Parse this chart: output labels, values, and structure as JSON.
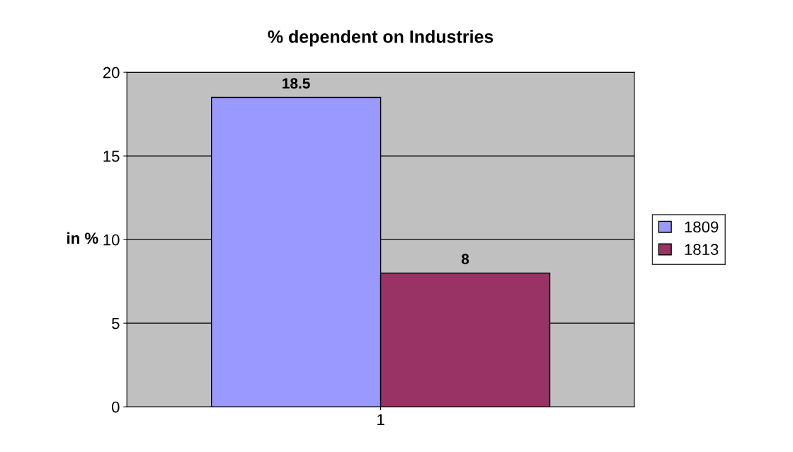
{
  "chart_data": {
    "type": "bar",
    "title": "% dependent on Industries",
    "ylabel": "in %",
    "categories": [
      "1"
    ],
    "series": [
      {
        "name": "1809",
        "color": "#9999ff",
        "values": [
          18.5
        ]
      },
      {
        "name": "1813",
        "color": "#993366",
        "values": [
          8
        ]
      }
    ],
    "ylim": [
      0,
      20
    ],
    "yticks": [
      0,
      5,
      10,
      15,
      20
    ],
    "grid": "y",
    "legend": "right",
    "data_labels": true
  }
}
